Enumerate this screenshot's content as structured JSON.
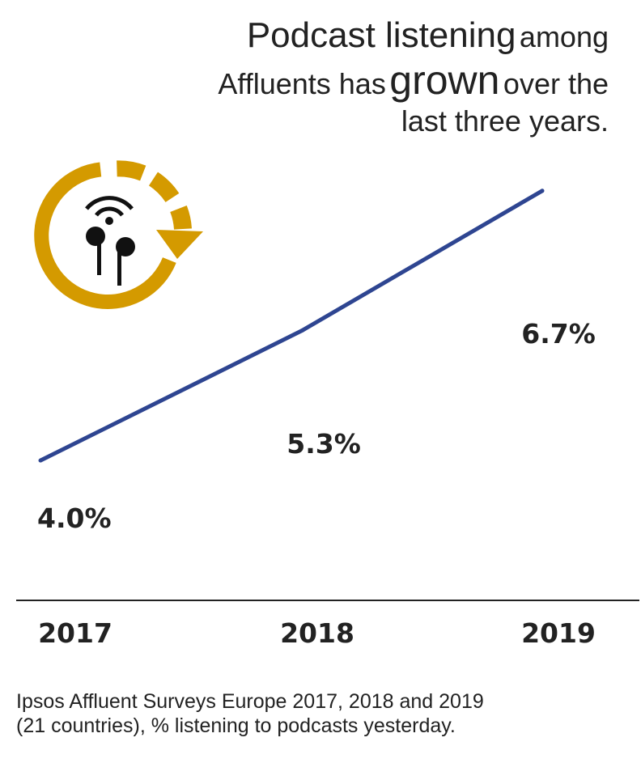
{
  "headline": {
    "part1": "Podcast listening",
    "part2": "among",
    "part3": "Affluents has",
    "part4": "grown",
    "part5": "over the",
    "part6": "last three years."
  },
  "source": {
    "line1": "Ipsos Affluent Surveys Europe 2017, 2018 and 2019",
    "line2": "(21 countries), % listening to podcasts yesterday."
  },
  "icon": "podcast-earbuds-growth-icon",
  "colors": {
    "line": "#2e4591",
    "icon": "#d49a00",
    "text": "#222222",
    "axis": "#222222"
  },
  "chart_data": {
    "type": "line",
    "x": [
      "2017",
      "2018",
      "2019"
    ],
    "series": [
      {
        "values": [
          4.0,
          5.3,
          6.7
        ],
        "labels": [
          "4.0%",
          "5.3%",
          "6.7%"
        ]
      }
    ],
    "ylim": [
      2.6,
      7.8
    ],
    "grid": false,
    "legend": "none"
  }
}
